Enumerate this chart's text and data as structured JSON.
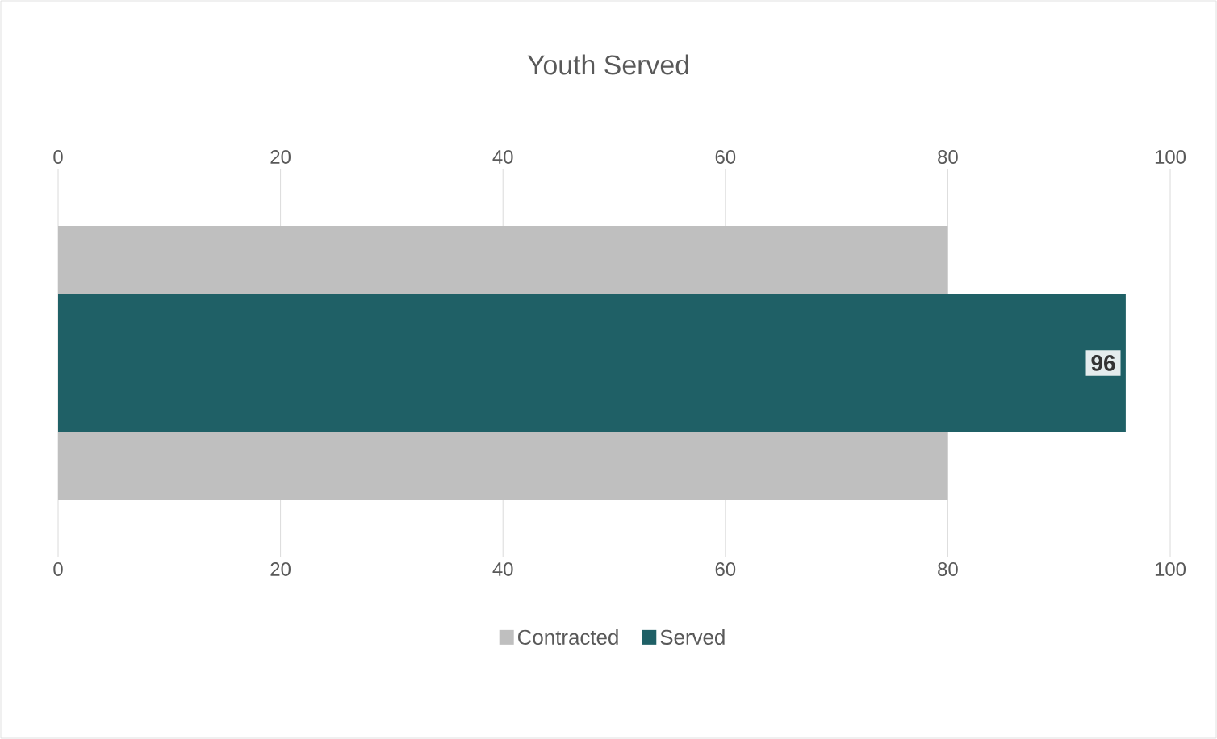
{
  "chart_data": {
    "type": "bar",
    "orientation": "horizontal",
    "title": "Youth Served",
    "categories": [
      null
    ],
    "series": [
      {
        "name": "Contracted",
        "color": "#bfbfbf",
        "values": [
          80
        ]
      },
      {
        "name": "Served",
        "color": "#1f6066",
        "values": [
          96
        ],
        "value_labels": [
          "96"
        ]
      }
    ],
    "xlim": [
      0,
      100
    ],
    "xticks": [
      0,
      20,
      40,
      60,
      80,
      100
    ],
    "x2lim": [
      0,
      100
    ],
    "x2ticks": [
      0,
      20,
      40,
      60,
      80,
      100
    ],
    "grid": "x",
    "legend": "bottom"
  }
}
